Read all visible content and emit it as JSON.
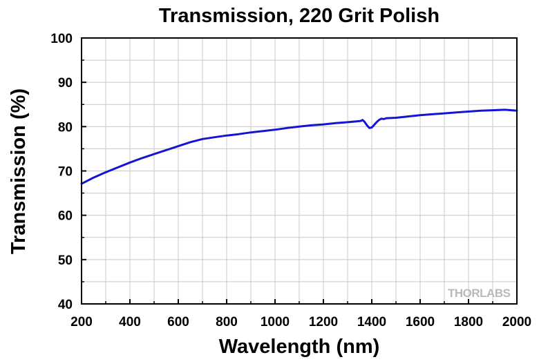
{
  "chart_data": {
    "type": "line",
    "title": "Transmission, 220 Grit Polish",
    "xlabel": "Wavelength (nm)",
    "ylabel": "Transmission (%)",
    "xlim": [
      200,
      2000
    ],
    "ylim": [
      40,
      100
    ],
    "x_ticks": [
      200,
      400,
      600,
      800,
      1000,
      1200,
      1400,
      1600,
      1800,
      2000
    ],
    "y_ticks": [
      40,
      50,
      60,
      70,
      80,
      90,
      100
    ],
    "grid": true,
    "legend": "none",
    "watermark": "THORLABS",
    "series": [
      {
        "color": "#1414d2",
        "x": [
          200,
          250,
          300,
          350,
          400,
          450,
          500,
          550,
          600,
          650,
          700,
          750,
          800,
          850,
          900,
          950,
          1000,
          1050,
          1100,
          1150,
          1200,
          1250,
          1300,
          1340,
          1355,
          1362,
          1370,
          1380,
          1390,
          1400,
          1410,
          1420,
          1430,
          1440,
          1450,
          1460,
          1500,
          1550,
          1600,
          1650,
          1700,
          1750,
          1800,
          1850,
          1900,
          1950,
          2000
        ],
        "y": [
          67.1,
          68.5,
          69.7,
          70.8,
          71.9,
          72.9,
          73.8,
          74.7,
          75.6,
          76.5,
          77.2,
          77.6,
          78.0,
          78.3,
          78.7,
          79.0,
          79.3,
          79.7,
          80.0,
          80.3,
          80.5,
          80.8,
          81.0,
          81.2,
          81.3,
          81.5,
          81.1,
          80.3,
          79.7,
          79.8,
          80.4,
          81.0,
          81.5,
          81.8,
          81.7,
          81.9,
          82.0,
          82.3,
          82.6,
          82.8,
          83.0,
          83.2,
          83.4,
          83.6,
          83.7,
          83.8,
          83.6
        ]
      }
    ]
  }
}
